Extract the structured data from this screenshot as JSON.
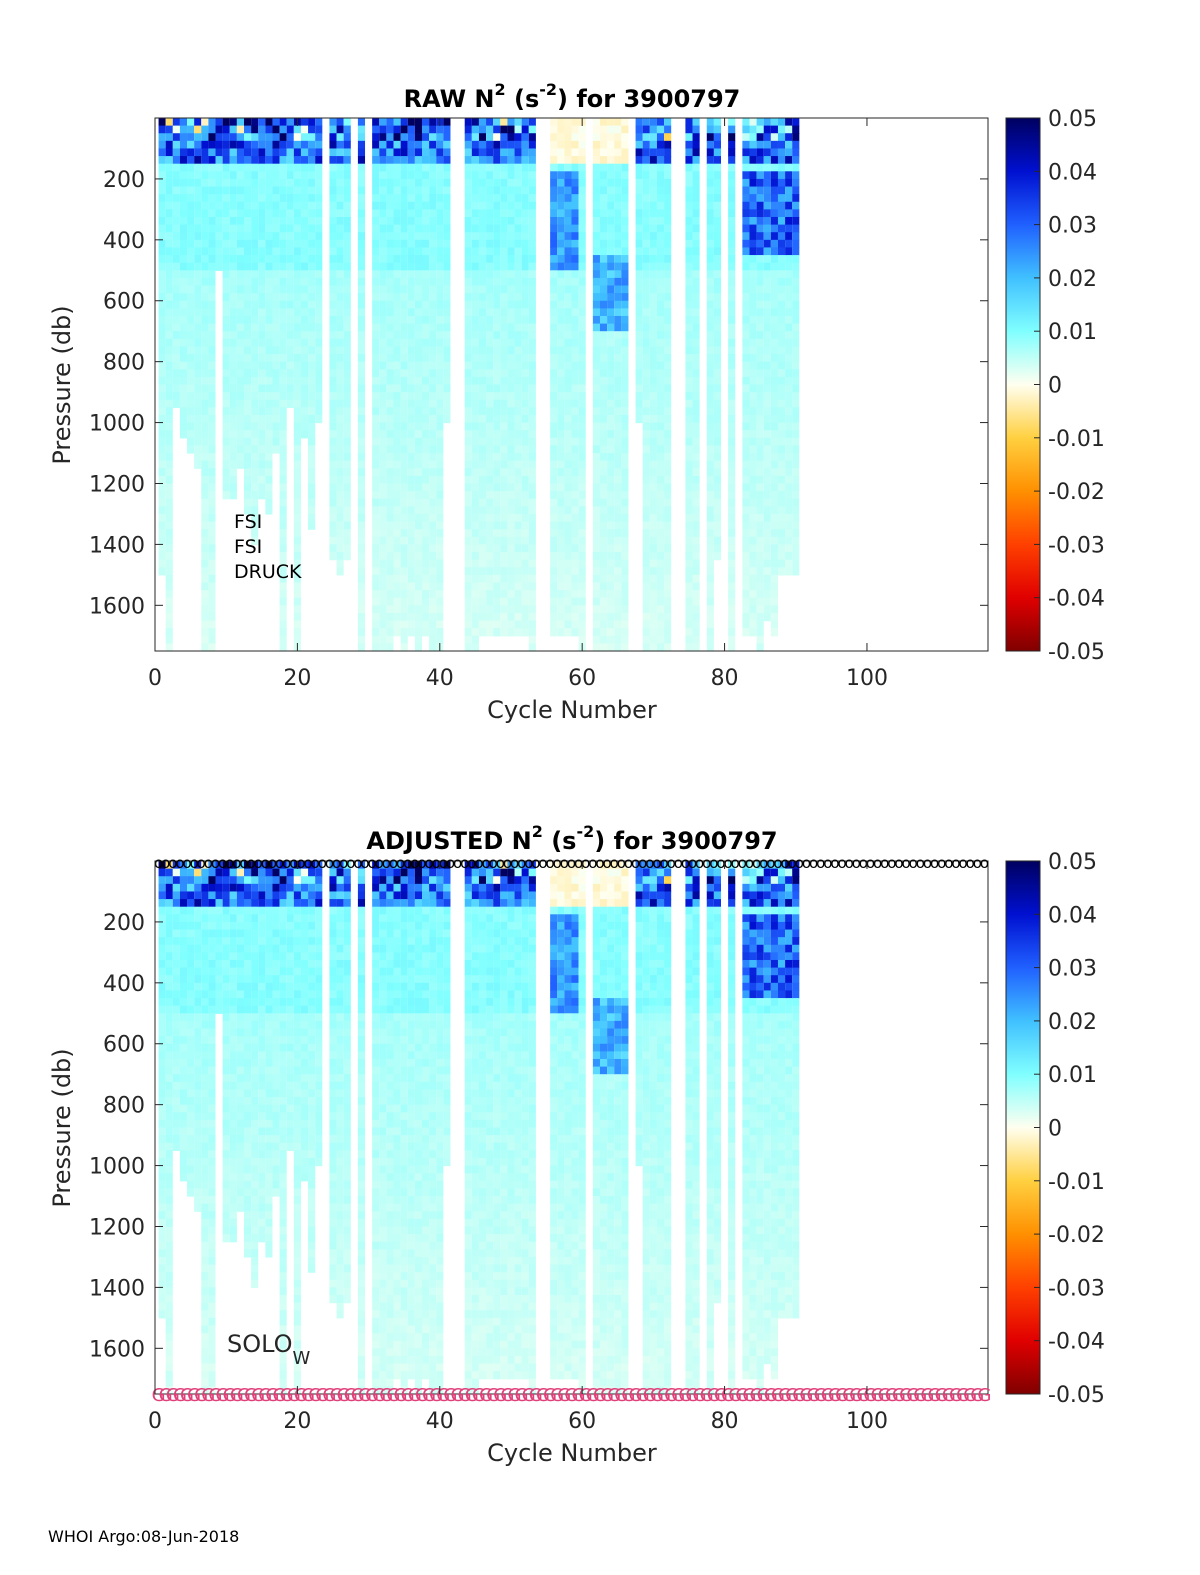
{
  "footer": "WHOI Argo:08-Jun-2018",
  "colorbar": {
    "ticks": [
      "0.05",
      "0.04",
      "0.03",
      "0.02",
      "0.01",
      "0",
      "-0.01",
      "-0.02",
      "-0.03",
      "-0.04",
      "-0.05"
    ],
    "range": [
      -0.05,
      0.05
    ]
  },
  "sensor_labels": [
    "FSI",
    "FSI",
    "DRUCK"
  ],
  "float_type": {
    "base": "SOLO",
    "sub": "W"
  },
  "chart_data": [
    {
      "type": "heatmap",
      "title_main": "RAW N",
      "title_sup1": "2",
      "title_mid": " (s",
      "title_sup2": "-2",
      "title_end": ") for 3900797",
      "xlabel": "Cycle Number",
      "ylabel": "Pressure (db)",
      "xlim": [
        0,
        117
      ],
      "ylim": [
        1750,
        0
      ],
      "xticks": [
        0,
        20,
        40,
        60,
        80,
        100
      ],
      "yticks": [
        200,
        400,
        600,
        800,
        1000,
        1200,
        1400,
        1600
      ],
      "profiles": [
        {
          "cycle": 1,
          "max_p": 1500
        },
        {
          "cycle": 2,
          "max_p": 1750
        },
        {
          "cycle": 3,
          "max_p": 950
        },
        {
          "cycle": 4,
          "max_p": 1050
        },
        {
          "cycle": 5,
          "max_p": 1100
        },
        {
          "cycle": 6,
          "max_p": 1150
        },
        {
          "cycle": 7,
          "max_p": 1750
        },
        {
          "cycle": 8,
          "max_p": 1750
        },
        {
          "cycle": 9,
          "max_p": 500
        },
        {
          "cycle": 10,
          "max_p": 1250
        },
        {
          "cycle": 11,
          "max_p": 1250
        },
        {
          "cycle": 12,
          "max_p": 1150
        },
        {
          "cycle": 13,
          "max_p": 1300
        },
        {
          "cycle": 14,
          "max_p": 1400
        },
        {
          "cycle": 15,
          "max_p": 1250
        },
        {
          "cycle": 16,
          "max_p": 1300
        },
        {
          "cycle": 17,
          "max_p": 1100
        },
        {
          "cycle": 18,
          "max_p": 1750
        },
        {
          "cycle": 19,
          "max_p": 950
        },
        {
          "cycle": 20,
          "max_p": 1750
        },
        {
          "cycle": 21,
          "max_p": 1050
        },
        {
          "cycle": 22,
          "max_p": 1350
        },
        {
          "cycle": 23,
          "max_p": 1000
        },
        {
          "cycle": 25,
          "max_p": 1450
        },
        {
          "cycle": 26,
          "max_p": 1500
        },
        {
          "cycle": 27,
          "max_p": 1450
        },
        {
          "cycle": 29,
          "max_p": 1750
        },
        {
          "cycle": 31,
          "max_p": 1750
        },
        {
          "cycle": 32,
          "max_p": 1750
        },
        {
          "cycle": 33,
          "max_p": 1750
        },
        {
          "cycle": 34,
          "max_p": 1700
        },
        {
          "cycle": 35,
          "max_p": 1750
        },
        {
          "cycle": 36,
          "max_p": 1700
        },
        {
          "cycle": 37,
          "max_p": 1750
        },
        {
          "cycle": 38,
          "max_p": 1700
        },
        {
          "cycle": 39,
          "max_p": 1750
        },
        {
          "cycle": 40,
          "max_p": 1750
        },
        {
          "cycle": 41,
          "max_p": 1000
        },
        {
          "cycle": 44,
          "max_p": 1750
        },
        {
          "cycle": 45,
          "max_p": 1750
        },
        {
          "cycle": 46,
          "max_p": 1700
        },
        {
          "cycle": 47,
          "max_p": 1700
        },
        {
          "cycle": 48,
          "max_p": 1700
        },
        {
          "cycle": 49,
          "max_p": 1700
        },
        {
          "cycle": 50,
          "max_p": 1700
        },
        {
          "cycle": 51,
          "max_p": 1700
        },
        {
          "cycle": 52,
          "max_p": 1700
        },
        {
          "cycle": 53,
          "max_p": 1750
        },
        {
          "cycle": 56,
          "max_p": 1700
        },
        {
          "cycle": 57,
          "max_p": 1700
        },
        {
          "cycle": 58,
          "max_p": 1700
        },
        {
          "cycle": 59,
          "max_p": 1700
        },
        {
          "cycle": 60,
          "max_p": 1750
        },
        {
          "cycle": 62,
          "max_p": 1750
        },
        {
          "cycle": 63,
          "max_p": 1750
        },
        {
          "cycle": 64,
          "max_p": 1750
        },
        {
          "cycle": 65,
          "max_p": 1750
        },
        {
          "cycle": 66,
          "max_p": 1750
        },
        {
          "cycle": 68,
          "max_p": 1000
        },
        {
          "cycle": 69,
          "max_p": 1750
        },
        {
          "cycle": 70,
          "max_p": 1750
        },
        {
          "cycle": 71,
          "max_p": 1750
        },
        {
          "cycle": 72,
          "max_p": 1750
        },
        {
          "cycle": 75,
          "max_p": 1750
        },
        {
          "cycle": 76,
          "max_p": 1750
        },
        {
          "cycle": 78,
          "max_p": 1750
        },
        {
          "cycle": 79,
          "max_p": 1450
        },
        {
          "cycle": 81,
          "max_p": 1750
        },
        {
          "cycle": 83,
          "max_p": 1700
        },
        {
          "cycle": 84,
          "max_p": 1700
        },
        {
          "cycle": 85,
          "max_p": 1750
        },
        {
          "cycle": 86,
          "max_p": 1650
        },
        {
          "cycle": 87,
          "max_p": 1700
        },
        {
          "cycle": 88,
          "max_p": 1500
        },
        {
          "cycle": 89,
          "max_p": 1500
        },
        {
          "cycle": 90,
          "max_p": 1500
        }
      ]
    },
    {
      "type": "heatmap",
      "title_main": "ADJUSTED N",
      "title_sup1": "2",
      "title_mid": " (s",
      "title_sup2": "-2",
      "title_end": ") for 3900797",
      "xlabel": "Cycle Number",
      "ylabel": "Pressure (db)",
      "xlim": [
        0,
        117
      ],
      "ylim": [
        1750,
        0
      ],
      "xticks": [
        0,
        20,
        40,
        60,
        80,
        100
      ],
      "yticks": [
        200,
        400,
        600,
        800,
        1000,
        1200,
        1400,
        1600
      ],
      "top_marker": "o",
      "bottom_marker": "G",
      "marker_colors": {
        "top": "#000000",
        "bottom": "#e0407a"
      }
    }
  ]
}
